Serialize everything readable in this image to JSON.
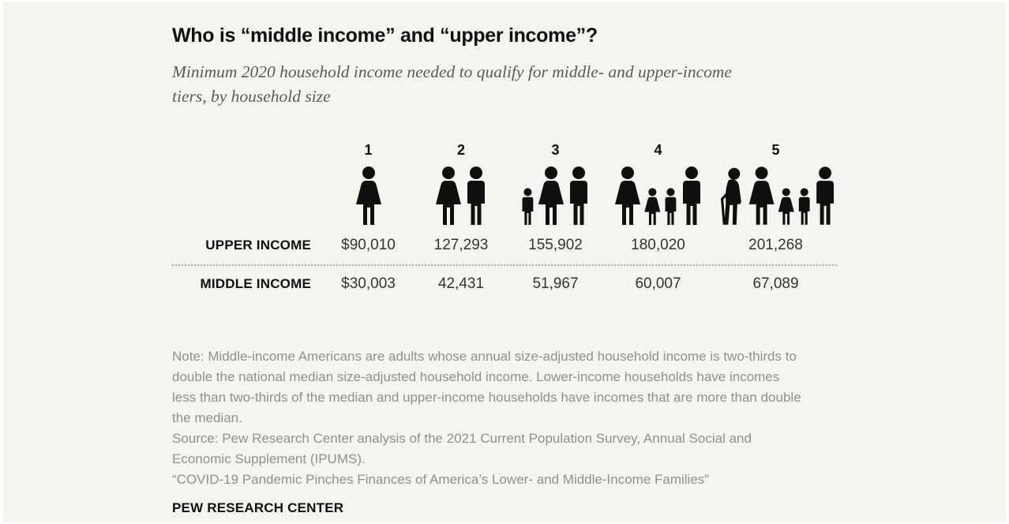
{
  "header": {
    "title": "Who is “middle income” and “upper income”?",
    "subtitle": "Minimum 2020 household income needed to qualify for middle- and upper-income tiers, by household size"
  },
  "chart_data": {
    "type": "table",
    "title": "Who is “middle income” and “upper income”?",
    "subtitle": "Minimum 2020 household income needed to qualify for middle- and upper-income tiers, by household size",
    "category_axis_label": "household size",
    "categories": [
      "1",
      "2",
      "3",
      "4",
      "5"
    ],
    "household_icons": [
      {
        "size": "1",
        "icon": "single-woman-icon",
        "persons": [
          "woman"
        ]
      },
      {
        "size": "2",
        "icon": "couple-icon",
        "persons": [
          "woman",
          "man"
        ]
      },
      {
        "size": "3",
        "icon": "family-of-three-icon",
        "persons": [
          "boy",
          "woman",
          "man"
        ]
      },
      {
        "size": "4",
        "icon": "family-of-four-icon",
        "persons": [
          "woman",
          "girl",
          "boy",
          "man"
        ]
      },
      {
        "size": "5",
        "icon": "family-of-five-icon",
        "persons": [
          "elderly",
          "woman",
          "girl",
          "boy",
          "man"
        ]
      }
    ],
    "series": [
      {
        "name": "UPPER INCOME",
        "values": [
          "$90,010",
          "127,293",
          "155,902",
          "180,020",
          "201,268"
        ]
      },
      {
        "name": "MIDDLE INCOME",
        "values": [
          "$30,003",
          "42,431",
          "51,967",
          "60,007",
          "67,089"
        ]
      }
    ],
    "numeric_values": {
      "upper_income": [
        90010,
        127293,
        155902,
        180020,
        201268
      ],
      "middle_income": [
        30003,
        42431,
        51967,
        60007,
        67089
      ]
    }
  },
  "footer": {
    "note": "Note: Middle-income Americans are adults whose annual size-adjusted household income is two-thirds to double the national median size-adjusted household income. Lower-income households have incomes less than two-thirds of the median and upper-income households have incomes that are more than double the median.",
    "source": "Source: Pew Research Center analysis of the 2021 Current Population Survey, Annual Social and Economic Supplement (IPUMS).",
    "citation": "“COVID-19 Pandemic Pinches Finances of America’s Lower- and Middle-Income Families”",
    "brand": "PEW RESEARCH CENTER"
  },
  "colors": {
    "background": "#f6f4ee",
    "frame": "#ffffff",
    "text_primary": "#0f0f0f",
    "text_values": "#333333",
    "text_subtitle": "#5a5a5c",
    "text_muted": "#909090",
    "divider_dotted": "#aeaba4",
    "icon_fill": "#0f0f0f"
  }
}
